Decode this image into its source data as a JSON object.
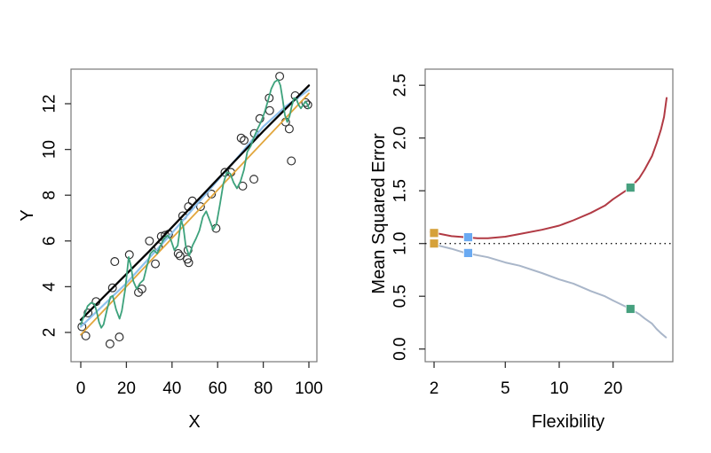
{
  "figure": {
    "background": "#ffffff",
    "description": "Two-panel statistical figure: simulated data with three model fits (left) and training vs test mean squared error against model flexibility (right)"
  },
  "colors": {
    "true_function": "#000000",
    "linear_fit": "#e2a63d",
    "smoothing_spline_fit": "#8fc1ee",
    "rough_spline_fit": "#3da27c",
    "test_mse": "#b13a44",
    "training_mse": "#a9b6c9",
    "marker_linear": "#d6a13a",
    "marker_smoothing_spline": "#6aaaf2",
    "marker_rough_spline": "#46a07e",
    "dotted_reference": "#111111",
    "scatter_stroke": "#2b2b2b",
    "box_stroke": "#777777",
    "tick_stroke": "#333333"
  },
  "chart_data": [
    {
      "type": "scatter",
      "xlabel": "X",
      "ylabel": "Y",
      "xlim": [
        0,
        100
      ],
      "ylim": [
        1.4,
        13.4
      ],
      "x_ticks": [
        0,
        20,
        40,
        60,
        80,
        100
      ],
      "y_ticks": [
        2,
        4,
        6,
        8,
        10,
        12
      ],
      "grid": false,
      "legend": "none",
      "scatter_points": [
        [
          0.5,
          2.25
        ],
        [
          2.2,
          1.85
        ],
        [
          3.2,
          2.85
        ],
        [
          6.7,
          3.35
        ],
        [
          12.8,
          1.5
        ],
        [
          16.9,
          1.8
        ],
        [
          13.9,
          3.95
        ],
        [
          14.9,
          5.1
        ],
        [
          21.3,
          5.4
        ],
        [
          25.3,
          3.75
        ],
        [
          26.8,
          3.9
        ],
        [
          30.1,
          6.0
        ],
        [
          32.7,
          5.0
        ],
        [
          34,
          5.75
        ],
        [
          35.3,
          6.2
        ],
        [
          37,
          6.25
        ],
        [
          38.5,
          6.3
        ],
        [
          42.7,
          5.45
        ],
        [
          43.5,
          5.35
        ],
        [
          44.7,
          7.1
        ],
        [
          46.7,
          5.2
        ],
        [
          47,
          5.6
        ],
        [
          47.3,
          5.05
        ],
        [
          47.2,
          7.5
        ],
        [
          48.9,
          7.75
        ],
        [
          52.5,
          7.5
        ],
        [
          57.3,
          8.05
        ],
        [
          59.3,
          6.55
        ],
        [
          63.2,
          9.0
        ],
        [
          65.8,
          9.0
        ],
        [
          70.3,
          10.5
        ],
        [
          71.6,
          10.4
        ],
        [
          71,
          8.4
        ],
        [
          75.9,
          8.7
        ],
        [
          76.1,
          10.7
        ],
        [
          78.5,
          11.35
        ],
        [
          82.6,
          12.25
        ],
        [
          82.8,
          11.7
        ],
        [
          87.2,
          13.2
        ],
        [
          89.8,
          11.2
        ],
        [
          91.4,
          10.9
        ],
        [
          92.3,
          9.5
        ],
        [
          94,
          12.35
        ],
        [
          98.6,
          12.05
        ],
        [
          99.5,
          11.95
        ]
      ],
      "series": [
        {
          "name": "linear-regression-fit",
          "color_key": "linear_fit",
          "width": 1.8,
          "points": [
            [
              0,
              1.9
            ],
            [
              100,
              12.45
            ]
          ]
        },
        {
          "name": "smoothing-spline-fit",
          "color_key": "smoothing_spline_fit",
          "width": 2.2,
          "points": [
            [
              0,
              2.25
            ],
            [
              10,
              3.2
            ],
            [
              20,
              4.15
            ],
            [
              30,
              5.25
            ],
            [
              40,
              6.35
            ],
            [
              50,
              7.5
            ],
            [
              60,
              8.65
            ],
            [
              70,
              9.8
            ],
            [
              80,
              11.0
            ],
            [
              90,
              11.9
            ],
            [
              100,
              12.6
            ]
          ]
        },
        {
          "name": "true-function",
          "color_key": "true_function",
          "width": 2.3,
          "points": [
            [
              0,
              2.55
            ],
            [
              10,
              3.55
            ],
            [
              20,
              4.55
            ],
            [
              30,
              5.55
            ],
            [
              40,
              6.6
            ],
            [
              50,
              7.65
            ],
            [
              60,
              8.7
            ],
            [
              70,
              9.75
            ],
            [
              80,
              10.8
            ],
            [
              90,
              11.8
            ],
            [
              100,
              12.8
            ]
          ]
        },
        {
          "name": "rough-smoothing-spline-fit",
          "color_key": "rough_spline_fit",
          "width": 1.8,
          "points": [
            [
              0,
              2.35
            ],
            [
              1.5,
              2.75
            ],
            [
              3,
              3.15
            ],
            [
              4.5,
              3.3
            ],
            [
              6,
              3.25
            ],
            [
              7,
              2.9
            ],
            [
              8,
              2.45
            ],
            [
              9,
              2.2
            ],
            [
              10,
              2.35
            ],
            [
              11.5,
              3.0
            ],
            [
              13,
              3.55
            ],
            [
              14,
              3.6
            ],
            [
              15.5,
              3.0
            ],
            [
              17,
              2.6
            ],
            [
              18,
              2.95
            ],
            [
              19.5,
              3.9
            ],
            [
              21,
              5.3
            ],
            [
              22,
              4.9
            ],
            [
              23,
              4.25
            ],
            [
              24.5,
              3.9
            ],
            [
              26,
              4.15
            ],
            [
              27.5,
              4.3
            ],
            [
              29,
              4.9
            ],
            [
              30.5,
              5.45
            ],
            [
              32,
              5.6
            ],
            [
              33.5,
              5.45
            ],
            [
              35,
              5.8
            ],
            [
              36.5,
              6.1
            ],
            [
              38,
              6.25
            ],
            [
              39.5,
              6.05
            ],
            [
              41,
              5.6
            ],
            [
              42.5,
              5.8
            ],
            [
              44,
              6.9
            ],
            [
              45,
              6.6
            ],
            [
              46,
              5.8
            ],
            [
              47.5,
              5.35
            ],
            [
              49,
              5.8
            ],
            [
              50.5,
              6.1
            ],
            [
              52,
              6.45
            ],
            [
              53.5,
              7.05
            ],
            [
              55,
              7.3
            ],
            [
              56.5,
              6.9
            ],
            [
              58,
              6.5
            ],
            [
              59.5,
              6.75
            ],
            [
              61,
              7.6
            ],
            [
              62.5,
              8.5
            ],
            [
              64,
              9.0
            ],
            [
              65.5,
              8.95
            ],
            [
              67,
              8.55
            ],
            [
              68.5,
              8.3
            ],
            [
              70,
              8.6
            ],
            [
              71.5,
              9.1
            ],
            [
              73,
              9.9
            ],
            [
              74.5,
              10.15
            ],
            [
              76,
              10.55
            ],
            [
              77.5,
              10.9
            ],
            [
              79,
              11.2
            ],
            [
              80.5,
              11.6
            ],
            [
              82,
              12.1
            ],
            [
              83.5,
              12.65
            ],
            [
              85,
              12.95
            ],
            [
              86.5,
              13.05
            ],
            [
              87.5,
              12.8
            ],
            [
              88.5,
              12.2
            ],
            [
              89.5,
              11.5
            ],
            [
              90.5,
              11.2
            ],
            [
              91.5,
              11.45
            ],
            [
              92.5,
              11.9
            ],
            [
              93.5,
              12.25
            ],
            [
              94.5,
              12.2
            ],
            [
              95.5,
              11.95
            ],
            [
              96.5,
              11.8
            ],
            [
              97.5,
              11.95
            ],
            [
              98.5,
              12.1
            ],
            [
              99.5,
              11.95
            ],
            [
              100,
              11.8
            ]
          ]
        }
      ]
    },
    {
      "type": "line",
      "xlabel": "Flexibility",
      "ylabel": "Mean Squared Error",
      "xscale": "log",
      "xlim": [
        1.8,
        45
      ],
      "ylim": [
        0,
        2.5
      ],
      "x_ticks": [
        2,
        5,
        10,
        20
      ],
      "y_ticks": [
        {
          "v": 0,
          "label": "0.0"
        },
        {
          "v": 0.5,
          "label": "0.5"
        },
        {
          "v": 1,
          "label": "1.0"
        },
        {
          "v": 1.5,
          "label": "1.5"
        },
        {
          "v": 2,
          "label": "2.0"
        },
        {
          "v": 2.5,
          "label": "2.5"
        }
      ],
      "grid": false,
      "legend": "none",
      "hline": {
        "y": 1.0,
        "style": "dotted",
        "name": "irreducible-error-line"
      },
      "series": [
        {
          "name": "training-mse-curve",
          "color_key": "training_mse",
          "width": 2.0,
          "points": [
            [
              1.9,
              1.0
            ],
            [
              2.5,
              0.95
            ],
            [
              3,
              0.91
            ],
            [
              4,
              0.87
            ],
            [
              5,
              0.82
            ],
            [
              6,
              0.79
            ],
            [
              8,
              0.72
            ],
            [
              10,
              0.66
            ],
            [
              12,
              0.62
            ],
            [
              15,
              0.55
            ],
            [
              18,
              0.5
            ],
            [
              20,
              0.46
            ],
            [
              25,
              0.38
            ],
            [
              28,
              0.33
            ],
            [
              30,
              0.29
            ],
            [
              33,
              0.24
            ],
            [
              35,
              0.19
            ],
            [
              37,
              0.15
            ],
            [
              39.5,
              0.11
            ]
          ]
        },
        {
          "name": "test-mse-curve",
          "color_key": "test_mse",
          "width": 2.0,
          "points": [
            [
              1.9,
              1.11
            ],
            [
              2.5,
              1.07
            ],
            [
              3,
              1.06
            ],
            [
              3.5,
              1.05
            ],
            [
              4,
              1.05
            ],
            [
              5,
              1.065
            ],
            [
              6,
              1.09
            ],
            [
              8,
              1.13
            ],
            [
              10,
              1.17
            ],
            [
              12,
              1.22
            ],
            [
              15,
              1.29
            ],
            [
              18,
              1.36
            ],
            [
              20,
              1.42
            ],
            [
              25,
              1.53
            ],
            [
              28,
              1.62
            ],
            [
              30,
              1.7
            ],
            [
              33,
              1.83
            ],
            [
              35,
              1.95
            ],
            [
              37,
              2.08
            ],
            [
              38.5,
              2.2
            ],
            [
              39.8,
              2.38
            ]
          ]
        }
      ],
      "markers": [
        {
          "name": "linear-model-mse-markers",
          "color_key": "marker_linear",
          "x": 2,
          "test": 1.1,
          "train": 1.0
        },
        {
          "name": "smoothing-spline-mse-markers",
          "color_key": "marker_smoothing_spline",
          "x": 3.1,
          "test": 1.06,
          "train": 0.91
        },
        {
          "name": "rough-spline-mse-markers",
          "color_key": "marker_rough_spline",
          "x": 25,
          "test": 1.53,
          "train": 0.38
        }
      ]
    }
  ]
}
